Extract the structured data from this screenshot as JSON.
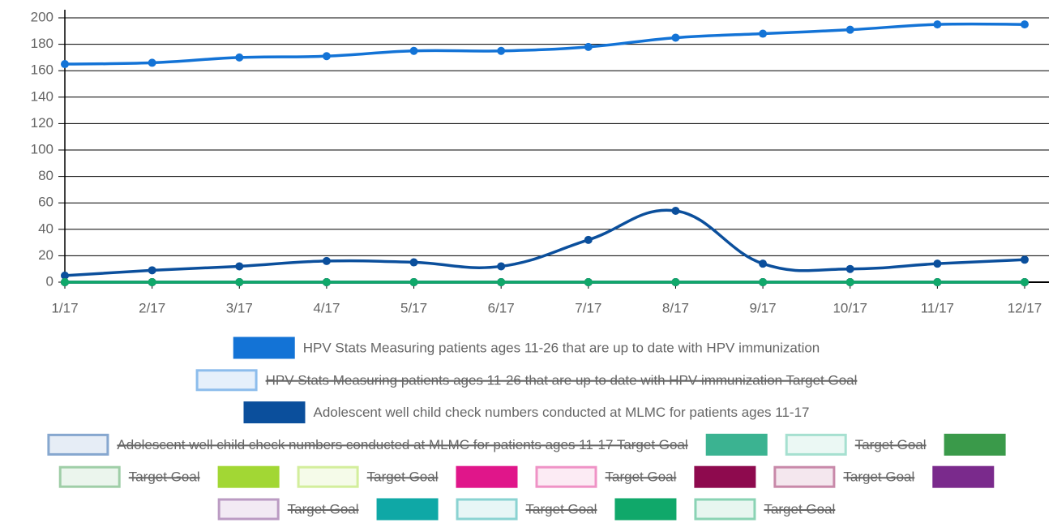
{
  "chart_data": {
    "type": "line",
    "categories": [
      "1/17",
      "2/17",
      "3/17",
      "4/17",
      "5/17",
      "6/17",
      "7/17",
      "8/17",
      "9/17",
      "10/17",
      "11/17",
      "12/17"
    ],
    "ylim": [
      0,
      200
    ],
    "yticks": [
      0,
      20,
      40,
      60,
      80,
      100,
      120,
      140,
      160,
      180,
      200
    ],
    "grid": true,
    "legend": "bottom",
    "series": [
      {
        "name": "HPV Stats Measuring patients ages 11-26 that are up to date with HPV immunization",
        "color": "#1373d6",
        "values": [
          165,
          166,
          170,
          171,
          175,
          175,
          178,
          185,
          188,
          191,
          195,
          195
        ]
      },
      {
        "name": "HPV Stats Measuring patients ages 11-26 that are up to date with HPV immunization Target Goal",
        "color": "#8dbdec",
        "fill": "#e6f0fb",
        "hidden": true
      },
      {
        "name": "Adolescent well child check numbers conducted at MLMC for patients ages 11-17",
        "color": "#0b4f9c",
        "values": [
          5,
          9,
          12,
          16,
          15,
          12,
          32,
          54,
          14,
          10,
          14,
          17
        ]
      },
      {
        "name": "Adolescent well child check numbers conducted at MLMC for patients ages 11-17 Target Goal",
        "color": "#86a7cf",
        "fill": "#e6edf6",
        "hidden": true
      },
      {
        "name": null,
        "color": "#3bb391",
        "values": [
          0,
          0,
          0,
          0,
          0,
          0,
          0,
          0,
          0,
          0,
          0,
          0
        ]
      },
      {
        "name": "Target Goal",
        "color": "#a6e0d0",
        "fill": "#ebf8f4",
        "hidden": true
      },
      {
        "name": null,
        "color": "#3a9a4a",
        "values": [
          0,
          0,
          0,
          0,
          0,
          0,
          0,
          0,
          0,
          0,
          0,
          0
        ]
      },
      {
        "name": "Target Goal",
        "color": "#9fcea7",
        "fill": "#ebf5ed",
        "hidden": true
      },
      {
        "name": null,
        "color": "#a2d734",
        "values": [
          0,
          0,
          0,
          0,
          0,
          0,
          0,
          0,
          0,
          0,
          0,
          0
        ]
      },
      {
        "name": "Target Goal",
        "color": "#d3ee9c",
        "fill": "#f5fbe9",
        "hidden": true
      },
      {
        "name": null,
        "color": "#e0168a",
        "values": [
          0,
          0,
          0,
          0,
          0,
          0,
          0,
          0,
          0,
          0,
          0,
          0
        ]
      },
      {
        "name": "Target Goal",
        "color": "#ef93c6",
        "fill": "#fcebf4",
        "hidden": true
      },
      {
        "name": null,
        "color": "#8e0a4e",
        "values": [
          0,
          0,
          0,
          0,
          0,
          0,
          0,
          0,
          0,
          0,
          0,
          0
        ]
      },
      {
        "name": "Target Goal",
        "color": "#c889a9",
        "fill": "#f4e7ee",
        "hidden": true
      },
      {
        "name": null,
        "color": "#7a2a8c",
        "values": [
          0,
          0,
          0,
          0,
          0,
          0,
          0,
          0,
          0,
          0,
          0,
          0
        ]
      },
      {
        "name": "Target Goal",
        "color": "#bb9bc3",
        "fill": "#f2eaf4",
        "hidden": true
      },
      {
        "name": null,
        "color": "#0fa8a6",
        "values": [
          0,
          0,
          0,
          0,
          0,
          0,
          0,
          0,
          0,
          0,
          0,
          0
        ]
      },
      {
        "name": "Target Goal",
        "color": "#8ad3d2",
        "fill": "#e7f6f6",
        "hidden": true
      },
      {
        "name": null,
        "color": "#10a86a",
        "values": [
          0,
          0,
          0,
          0,
          0,
          0,
          0,
          0,
          0,
          0,
          0,
          0
        ]
      },
      {
        "name": "Target Goal",
        "color": "#8ad3b4",
        "fill": "#e7f6f0",
        "hidden": true
      }
    ]
  }
}
